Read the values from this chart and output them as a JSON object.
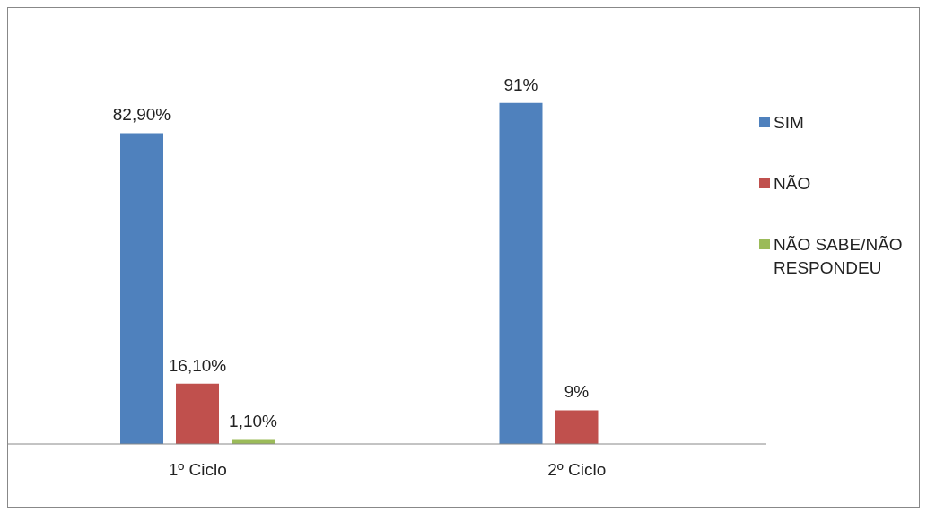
{
  "chart_data": {
    "type": "bar",
    "categories": [
      "1º Ciclo",
      "2º Ciclo"
    ],
    "series": [
      {
        "name": "SIM",
        "color": "#4f81bd",
        "values": [
          82.9,
          91
        ],
        "value_labels": [
          "82,90%",
          "91%"
        ]
      },
      {
        "name": "NÃO",
        "color": "#c0504d",
        "values": [
          16.1,
          9
        ],
        "value_labels": [
          "16,10%",
          "9%"
        ]
      },
      {
        "name": "NÃO SABE/NÃO RESPONDEU",
        "color": "#9bbb59",
        "values": [
          1.1,
          null
        ],
        "value_labels": [
          "1,10%",
          null
        ]
      }
    ],
    "legend": "right"
  }
}
